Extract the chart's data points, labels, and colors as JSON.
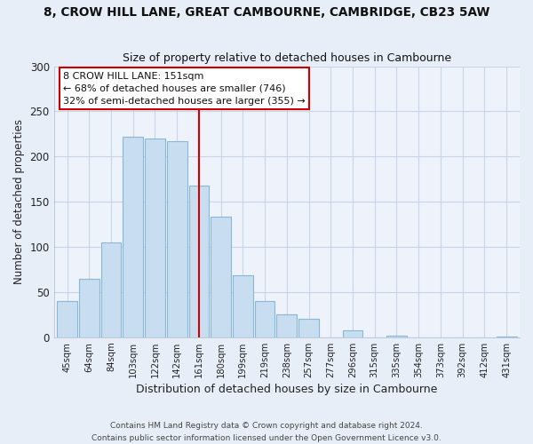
{
  "title": "8, CROW HILL LANE, GREAT CAMBOURNE, CAMBRIDGE, CB23 5AW",
  "subtitle": "Size of property relative to detached houses in Cambourne",
  "xlabel": "Distribution of detached houses by size in Cambourne",
  "ylabel": "Number of detached properties",
  "categories": [
    "45sqm",
    "64sqm",
    "84sqm",
    "103sqm",
    "122sqm",
    "142sqm",
    "161sqm",
    "180sqm",
    "199sqm",
    "219sqm",
    "238sqm",
    "257sqm",
    "277sqm",
    "296sqm",
    "315sqm",
    "335sqm",
    "354sqm",
    "373sqm",
    "392sqm",
    "412sqm",
    "431sqm"
  ],
  "values": [
    40,
    65,
    105,
    222,
    220,
    217,
    168,
    133,
    69,
    40,
    25,
    20,
    0,
    8,
    0,
    2,
    0,
    0,
    0,
    0,
    1
  ],
  "bar_color": "#c8ddf0",
  "bar_edge_color": "#88b8d8",
  "ylim": [
    0,
    300
  ],
  "yticks": [
    0,
    50,
    100,
    150,
    200,
    250,
    300
  ],
  "vline_index": 6,
  "vline_color": "#cc0000",
  "annotation_title": "8 CROW HILL LANE: 151sqm",
  "annotation_line1": "← 68% of detached houses are smaller (746)",
  "annotation_line2": "32% of semi-detached houses are larger (355) →",
  "footer1": "Contains HM Land Registry data © Crown copyright and database right 2024.",
  "footer2": "Contains public sector information licensed under the Open Government Licence v3.0.",
  "background_color": "#e8eef8",
  "plot_background_color": "#eef2fa",
  "grid_color": "#c8d4e8"
}
